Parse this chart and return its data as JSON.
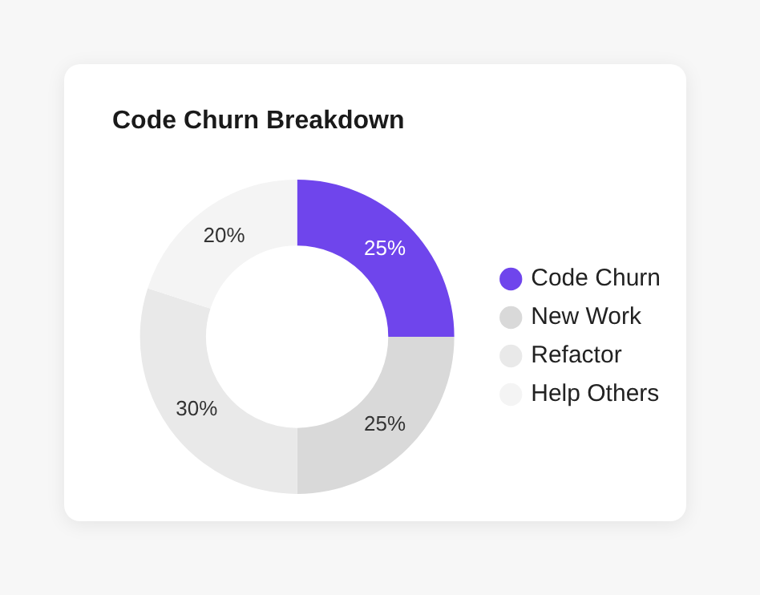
{
  "chart_data": {
    "type": "donut",
    "title": "Code Churn Breakdown",
    "categories": [
      "Code Churn",
      "New Work",
      "Refactor",
      "Help Others"
    ],
    "values": [
      25,
      25,
      30,
      20
    ],
    "value_labels": [
      "25%",
      "25%",
      "30%",
      "20%"
    ],
    "colors": [
      "#6f45ec",
      "#d9d9d9",
      "#e9e9e9",
      "#f4f4f4"
    ],
    "legend": "right"
  }
}
